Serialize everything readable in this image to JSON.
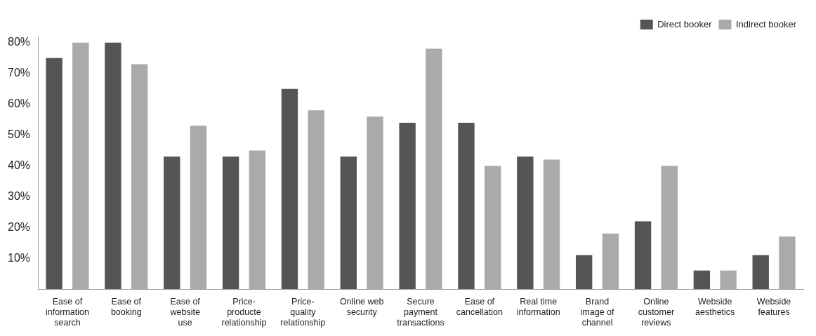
{
  "chart_data": {
    "type": "bar",
    "categories": [
      "Ease of information search",
      "Ease of booking",
      "Ease of website use",
      "Price-producte relationship",
      "Price-quality relationship",
      "Online web security",
      "Secure payment transactions",
      "Ease of cancellation",
      "Real time information",
      "Brand image of channel",
      "Online customer reviews",
      "Webside aesthetics",
      "Webside features"
    ],
    "series": [
      {
        "name": "Direct booker",
        "color": "#555555",
        "values": [
          75,
          80,
          43,
          43,
          65,
          43,
          54,
          54,
          43,
          11,
          22,
          6,
          11
        ]
      },
      {
        "name": "Indirect booker",
        "color": "#aaaaaa",
        "values": [
          80,
          73,
          53,
          45,
          58,
          56,
          78,
          40,
          42,
          18,
          40,
          6,
          17
        ]
      }
    ],
    "ylim": [
      0,
      82
    ],
    "yticks": [
      {
        "value": 10,
        "label": "10%"
      },
      {
        "value": 20,
        "label": "20%"
      },
      {
        "value": 30,
        "label": "30%"
      },
      {
        "value": 40,
        "label": "40%"
      },
      {
        "value": 50,
        "label": "50%"
      },
      {
        "value": 60,
        "label": "60%"
      },
      {
        "value": 70,
        "label": "70%"
      },
      {
        "value": 80,
        "label": "80%"
      }
    ],
    "grid": false,
    "legend": "top right"
  }
}
